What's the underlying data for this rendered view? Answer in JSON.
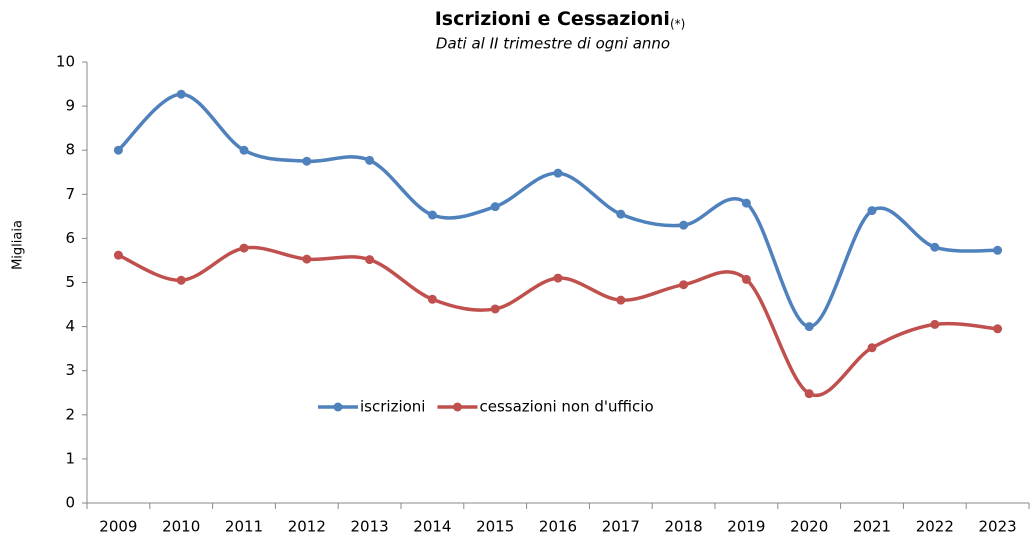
{
  "chart_data": {
    "type": "line",
    "title": "Iscrizioni e Cessazioni",
    "title_note": "(*)",
    "subtitle": "Dati al II trimestre di ogni anno",
    "y_label": "Migliaia",
    "categories": [
      "2009",
      "2010",
      "2011",
      "2012",
      "2013",
      "2014",
      "2015",
      "2016",
      "2017",
      "2018",
      "2019",
      "2020",
      "2021",
      "2022",
      "2023"
    ],
    "series": [
      {
        "name": "iscrizioni",
        "color": "#4f81bd",
        "values": [
          8.0,
          9.27,
          8.0,
          7.75,
          7.77,
          6.53,
          6.72,
          7.48,
          6.55,
          6.3,
          6.8,
          4.0,
          6.63,
          5.8,
          5.73
        ]
      },
      {
        "name": "cessazioni non d'ufficio",
        "color": "#c0504d",
        "values": [
          5.62,
          5.05,
          5.78,
          5.53,
          5.52,
          4.62,
          4.4,
          5.1,
          4.6,
          4.95,
          5.07,
          2.48,
          3.52,
          4.05,
          3.95
        ]
      }
    ],
    "ylim": [
      0,
      10
    ],
    "yticks": [
      0,
      1,
      2,
      3,
      4,
      5,
      6,
      7,
      8,
      9,
      10
    ],
    "smooth": true,
    "legend": "center"
  }
}
